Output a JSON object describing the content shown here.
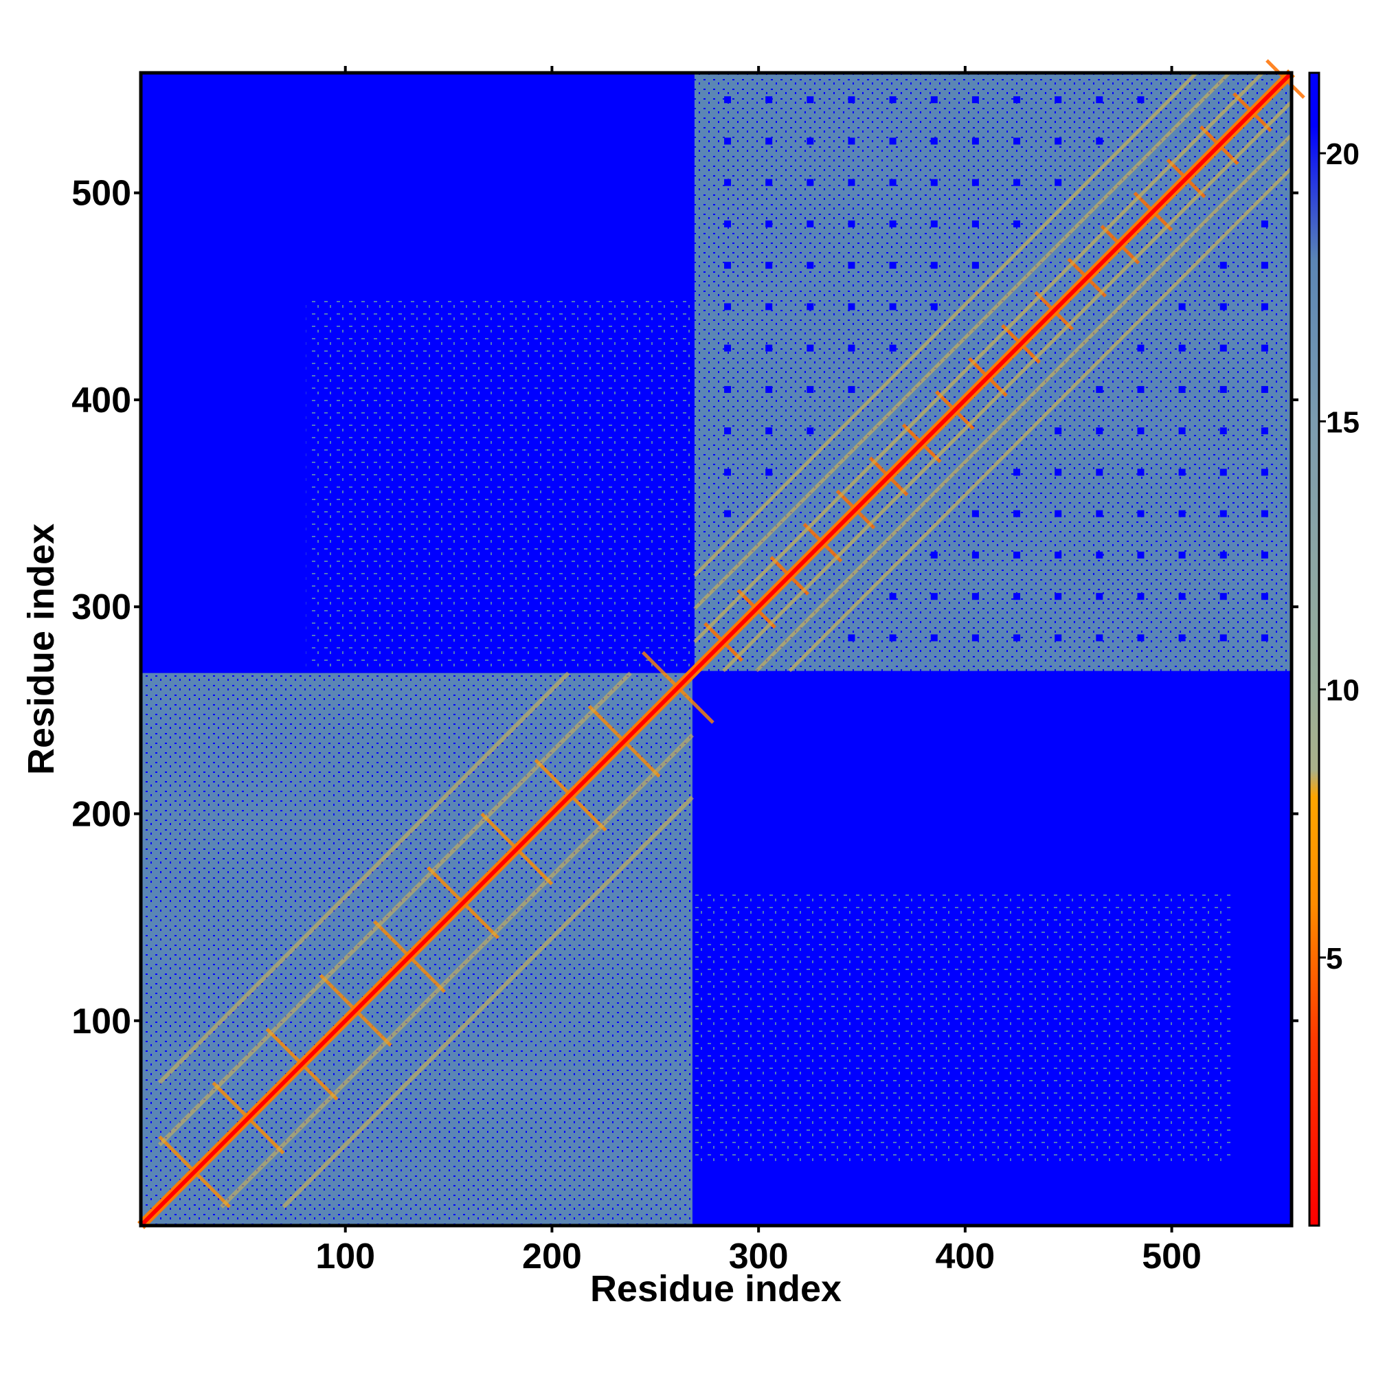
{
  "chart_data": {
    "type": "heatmap",
    "title": "",
    "xlabel": "Residue index",
    "ylabel": "Residue index",
    "xlim": [
      1,
      558
    ],
    "ylim": [
      1,
      558
    ],
    "x_ticks": [
      100,
      200,
      300,
      400,
      500
    ],
    "y_ticks": [
      100,
      200,
      300,
      400,
      500
    ],
    "colorbar": {
      "range": [
        0,
        21.5
      ],
      "ticks": [
        5,
        10,
        15,
        20
      ],
      "stops": [
        {
          "value": 0,
          "color": "#ff0000"
        },
        {
          "value": 3.5,
          "color": "#ff3a00"
        },
        {
          "value": 6,
          "color": "#ff8c00"
        },
        {
          "value": 8,
          "color": "#ffa500"
        },
        {
          "value": 8.5,
          "color": "#aab08a"
        },
        {
          "value": 10,
          "color": "#9aaf9a"
        },
        {
          "value": 15,
          "color": "#7c9cb0"
        },
        {
          "value": 18,
          "color": "#5b86b5"
        },
        {
          "value": 20.5,
          "color": "#0000ff"
        }
      ]
    },
    "matrix_description": "Pairwise residue distance map (Å). Symmetric; two domains: residues 1–268 and 269–558. Intra-domain distances mostly 8–20 with contacts <8 near the diagonal; inter-domain distances saturate above 20.",
    "domains": [
      {
        "start": 1,
        "end": 268
      },
      {
        "start": 269,
        "end": 558
      }
    ],
    "diagonal_value": 3.8,
    "saturation_value": 21.5,
    "grid": false,
    "legend": "right colorbar"
  },
  "colors": {
    "frame": "#000000",
    "far": "#0000ff",
    "mid": "#5b86b5",
    "near": "#ff0000"
  }
}
